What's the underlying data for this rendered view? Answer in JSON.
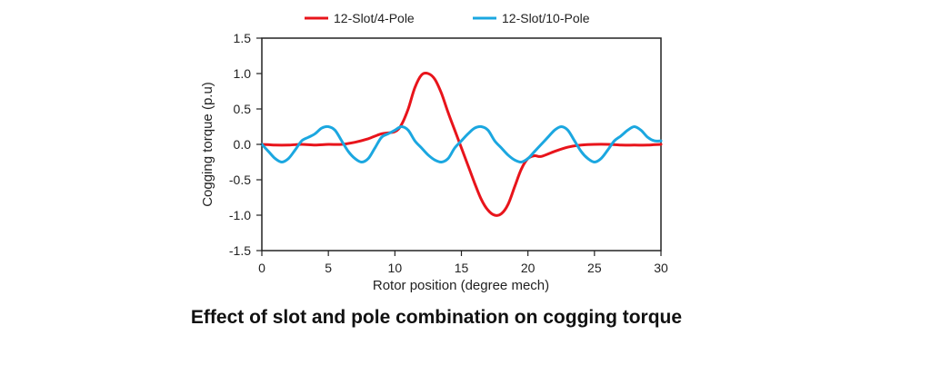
{
  "caption": "Effect of slot and pole combination on cogging torque",
  "colors": {
    "series1": "#e8141b",
    "series2": "#1ba7e0"
  },
  "chart_data": {
    "type": "line",
    "xlabel": "Rotor position (degree mech)",
    "ylabel": "Cogging torque (p.u)",
    "xlim": [
      0,
      30
    ],
    "ylim": [
      -1.5,
      1.5
    ],
    "xticks": [
      "0",
      "5",
      "10",
      "15",
      "20",
      "25",
      "30"
    ],
    "yticks": [
      "1.5",
      "1.0",
      "0.5",
      "0.0",
      "-0.5",
      "-1.0",
      "-1.5"
    ],
    "legend_position": "top",
    "grid": false,
    "series": [
      {
        "name": "12-Slot/4-Pole",
        "x": [
          0,
          1,
          2,
          3,
          4,
          5,
          6,
          7,
          8,
          9,
          10,
          10.5,
          11,
          11.5,
          12,
          12.5,
          13,
          13.5,
          14,
          14.5,
          15,
          15.5,
          16,
          16.5,
          17,
          17.5,
          18,
          18.5,
          19,
          19.5,
          20,
          20.5,
          21,
          22,
          23,
          24,
          25,
          26,
          27,
          28,
          29,
          30
        ],
        "values": [
          0,
          -0.01,
          -0.01,
          0,
          -0.01,
          0,
          0,
          0.03,
          0.08,
          0.15,
          0.18,
          0.28,
          0.5,
          0.8,
          0.98,
          1.0,
          0.92,
          0.72,
          0.45,
          0.2,
          -0.05,
          -0.3,
          -0.55,
          -0.78,
          -0.93,
          -1.0,
          -0.98,
          -0.85,
          -0.6,
          -0.35,
          -0.2,
          -0.16,
          -0.17,
          -0.1,
          -0.04,
          -0.01,
          0,
          0,
          -0.01,
          -0.01,
          -0.01,
          0
        ]
      },
      {
        "name": "12-Slot/10-Pole",
        "x": [
          0,
          0.5,
          1,
          1.5,
          2,
          2.5,
          3,
          3.5,
          4,
          4.5,
          5,
          5.5,
          6,
          6.5,
          7,
          7.5,
          8,
          8.5,
          9,
          9.5,
          10,
          10.5,
          11,
          11.5,
          12,
          12.5,
          13,
          13.5,
          14,
          14.5,
          15,
          15.5,
          16,
          16.5,
          17,
          17.5,
          18,
          18.5,
          19,
          19.5,
          20,
          20.5,
          21,
          21.5,
          22,
          22.5,
          23,
          23.5,
          24,
          24.5,
          25,
          25.5,
          26,
          26.5,
          27,
          27.5,
          28,
          28.5,
          29,
          29.5,
          30
        ],
        "values": [
          0,
          -0.1,
          -0.2,
          -0.25,
          -0.2,
          -0.08,
          0.05,
          0.1,
          0.15,
          0.23,
          0.25,
          0.2,
          0.05,
          -0.1,
          -0.2,
          -0.25,
          -0.2,
          -0.05,
          0.1,
          0.15,
          0.2,
          0.25,
          0.2,
          0.05,
          -0.05,
          -0.15,
          -0.22,
          -0.25,
          -0.2,
          -0.05,
          0.05,
          0.15,
          0.23,
          0.25,
          0.2,
          0.05,
          -0.05,
          -0.15,
          -0.22,
          -0.25,
          -0.2,
          -0.1,
          0,
          0.1,
          0.2,
          0.25,
          0.2,
          0.05,
          -0.1,
          -0.2,
          -0.25,
          -0.2,
          -0.08,
          0.05,
          0.12,
          0.2,
          0.25,
          0.2,
          0.1,
          0.05,
          0.05
        ]
      }
    ]
  }
}
